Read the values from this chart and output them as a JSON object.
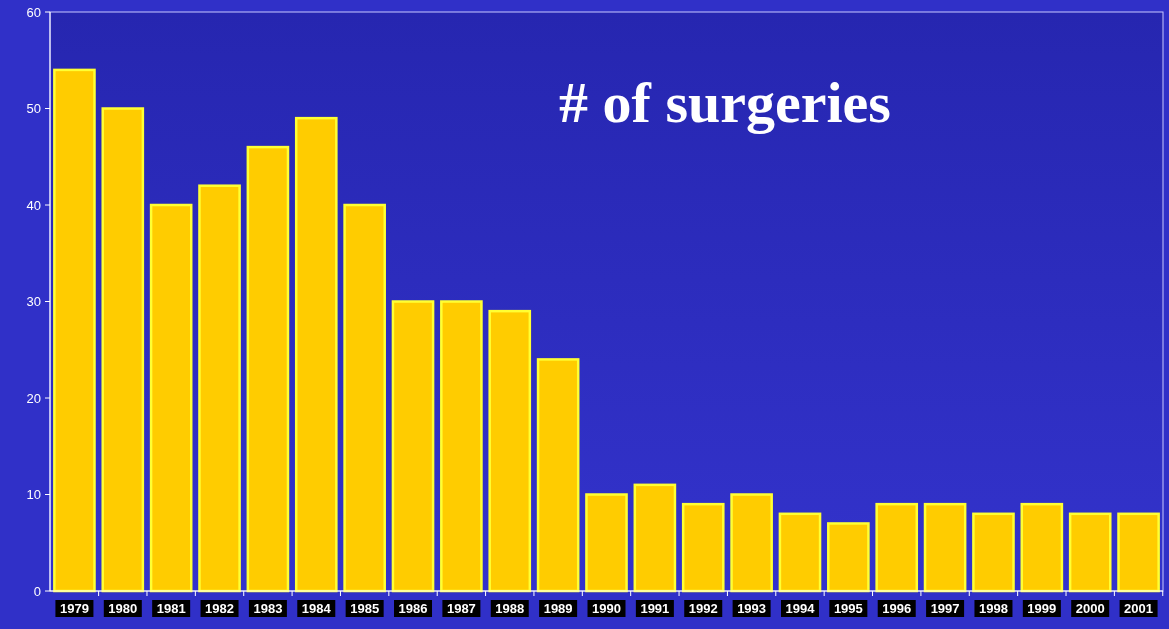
{
  "chart_data": {
    "type": "bar",
    "title": "# of surgeries",
    "categories": [
      "1979",
      "1980",
      "1981",
      "1982",
      "1983",
      "1984",
      "1985",
      "1986",
      "1987",
      "1988",
      "1989",
      "1990",
      "1991",
      "1992",
      "1993",
      "1994",
      "1995",
      "1996",
      "1997",
      "1998",
      "1999",
      "2000",
      "2001"
    ],
    "values": [
      54,
      50,
      40,
      42,
      46,
      49,
      40,
      30,
      30,
      29,
      24,
      10,
      11,
      9,
      10,
      8,
      7,
      9,
      9,
      8,
      9,
      8,
      8
    ],
    "color": "#ffcc00",
    "ylim": [
      0,
      60
    ],
    "yticks": [
      0,
      10,
      20,
      30,
      40,
      50,
      60
    ],
    "grid": false
  }
}
